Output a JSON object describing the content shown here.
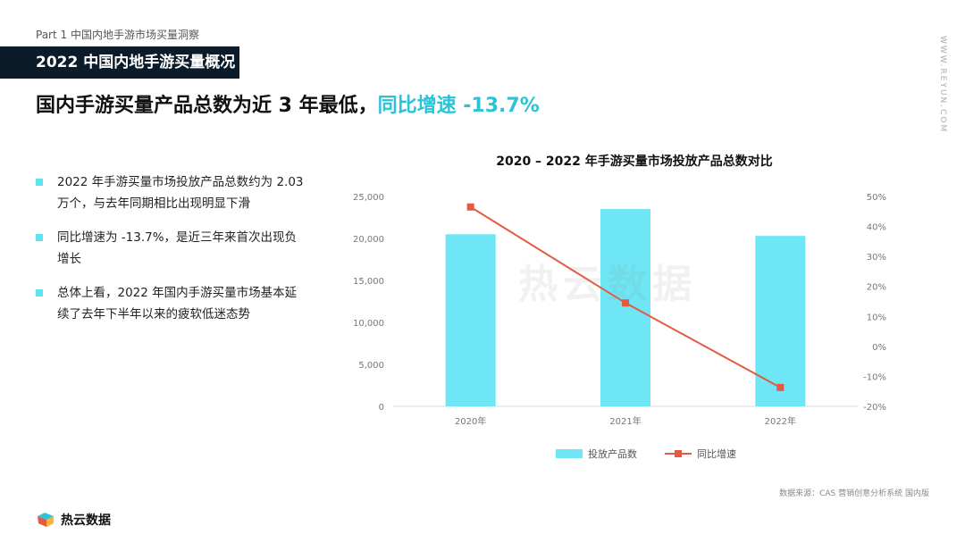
{
  "header": {
    "crumb": "Part 1  中国内地手游市场买量洞察",
    "banner": "2022 中国内地手游买量概况",
    "headline_main": "国内手游买量产品总数为近 3 年最低，",
    "headline_accent": "同比增速 -13.7%",
    "site_vertical": "WWW.REYUN.COM"
  },
  "bullets": [
    "2022 年手游买量市场投放产品总数约为 2.03 万个，与去年同期相比出现明显下滑",
    "同比增速为 -13.7%，是近三年来首次出现负增长",
    "总体上看，2022 年国内手游买量市场基本延续了去年下半年以来的疲软低迷态势"
  ],
  "chart_data": {
    "type": "bar",
    "title": "2020 – 2022 年手游买量市场投放产品总数对比",
    "categories": [
      "2020年",
      "2021年",
      "2022年"
    ],
    "series": [
      {
        "name": "投放产品数",
        "type": "bar",
        "axis": "left",
        "color": "#6ee6f5",
        "values": [
          20500,
          23500,
          20300
        ]
      },
      {
        "name": "同比增速",
        "type": "line",
        "axis": "right",
        "color": "#e45a44",
        "values": [
          0.465,
          0.145,
          -0.137
        ]
      }
    ],
    "y_left": {
      "min": 0,
      "max": 25000,
      "ticks": [
        "0",
        "5,000",
        "10,000",
        "15,000",
        "20,000",
        "25,000"
      ]
    },
    "y_right": {
      "min": -0.2,
      "max": 0.5,
      "ticks": [
        "-20%",
        "-10%",
        "0%",
        "10%",
        "20%",
        "30%",
        "40%",
        "50%"
      ]
    },
    "legend_position": "bottom",
    "grid": false
  },
  "watermark": "热云数据",
  "source": "数据来源：CAS 营销创意分析系统 国内版",
  "footer": {
    "brand": "热云数据"
  }
}
